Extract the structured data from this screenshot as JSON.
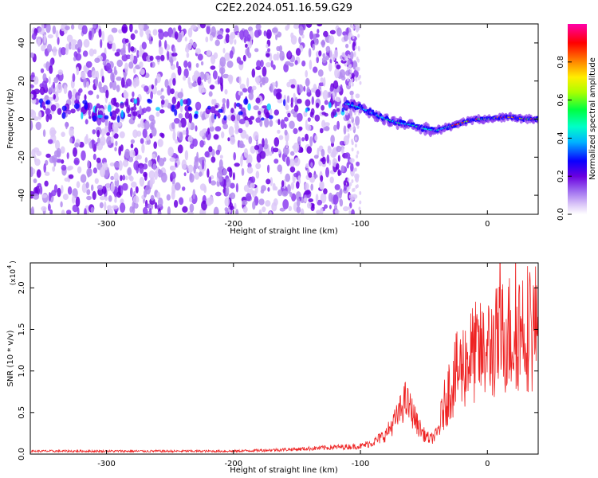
{
  "title": "C2E2.2024.051.16.59.G29",
  "colors": {
    "snr_line": "#ee2222",
    "spectrogram_palette": [
      "#ffffff",
      "#dcc8f8",
      "#b48cf0",
      "#8c3cf0",
      "#6a00e0",
      "#0a00ff",
      "#00c8ff",
      "#00ff60",
      "#aaff00",
      "#ffee00",
      "#ff8800",
      "#ff0000",
      "#ff00aa"
    ]
  },
  "chart_data": [
    {
      "type": "heatmap",
      "title": "C2E2.2024.051.16.59.G29",
      "xlabel": "Height of straight line (km)",
      "ylabel": "Frequency (Hz)",
      "xlim": [
        -360,
        40
      ],
      "ylim": [
        -50,
        50
      ],
      "x_ticks": [
        -300,
        -200,
        -100,
        0
      ],
      "y_ticks": [
        -40,
        -20,
        0,
        20,
        40
      ],
      "colorbar": {
        "label": "Normalized spectral amplitude",
        "range": [
          0.0,
          1.0
        ],
        "ticks": [
          "0.0",
          "0.2",
          "0.4",
          "0.6",
          "0.8"
        ]
      },
      "signal_track": {
        "x": [
          -110,
          -100,
          -90,
          -80,
          -70,
          -60,
          -50,
          -40,
          -30,
          -20,
          -10,
          0,
          10,
          20,
          30,
          40
        ],
        "freq": [
          8,
          6,
          3,
          0,
          -2,
          -3,
          -5,
          -6,
          -4,
          -2,
          0,
          0,
          1,
          1,
          0,
          0
        ]
      },
      "noise_region_x": [
        -360,
        -110
      ]
    },
    {
      "type": "line",
      "xlabel": "Height of straight line (km)",
      "ylabel": "SNR (10 * v/v)",
      "y_multiplier": "(x10",
      "y_multiplier_exp": "4",
      "xlim": [
        -360,
        40
      ],
      "ylim": [
        0.0,
        2.3
      ],
      "x_ticks": [
        -300,
        -200,
        -100,
        0
      ],
      "y_ticks": [
        "0.0",
        "0.5",
        "1.0",
        "1.5",
        "2.0"
      ],
      "series": [
        {
          "x": [
            -360,
            -300,
            -200,
            -150,
            -120,
            -100,
            -90,
            -80,
            -75,
            -70,
            -65,
            -60,
            -55,
            -50,
            -45,
            -40,
            -35,
            -30,
            -25,
            -20,
            -15,
            -10,
            -5,
            0,
            5,
            10,
            15,
            20,
            25,
            30,
            35,
            40
          ],
          "y": [
            0.03,
            0.03,
            0.03,
            0.05,
            0.07,
            0.08,
            0.12,
            0.2,
            0.3,
            0.4,
            0.55,
            0.45,
            0.3,
            0.2,
            0.15,
            0.2,
            0.5,
            0.75,
            0.9,
            1.0,
            1.1,
            1.15,
            1.15,
            1.2,
            1.25,
            1.3,
            1.4,
            1.35,
            1.45,
            1.5,
            1.4,
            1.5
          ]
        }
      ]
    }
  ]
}
